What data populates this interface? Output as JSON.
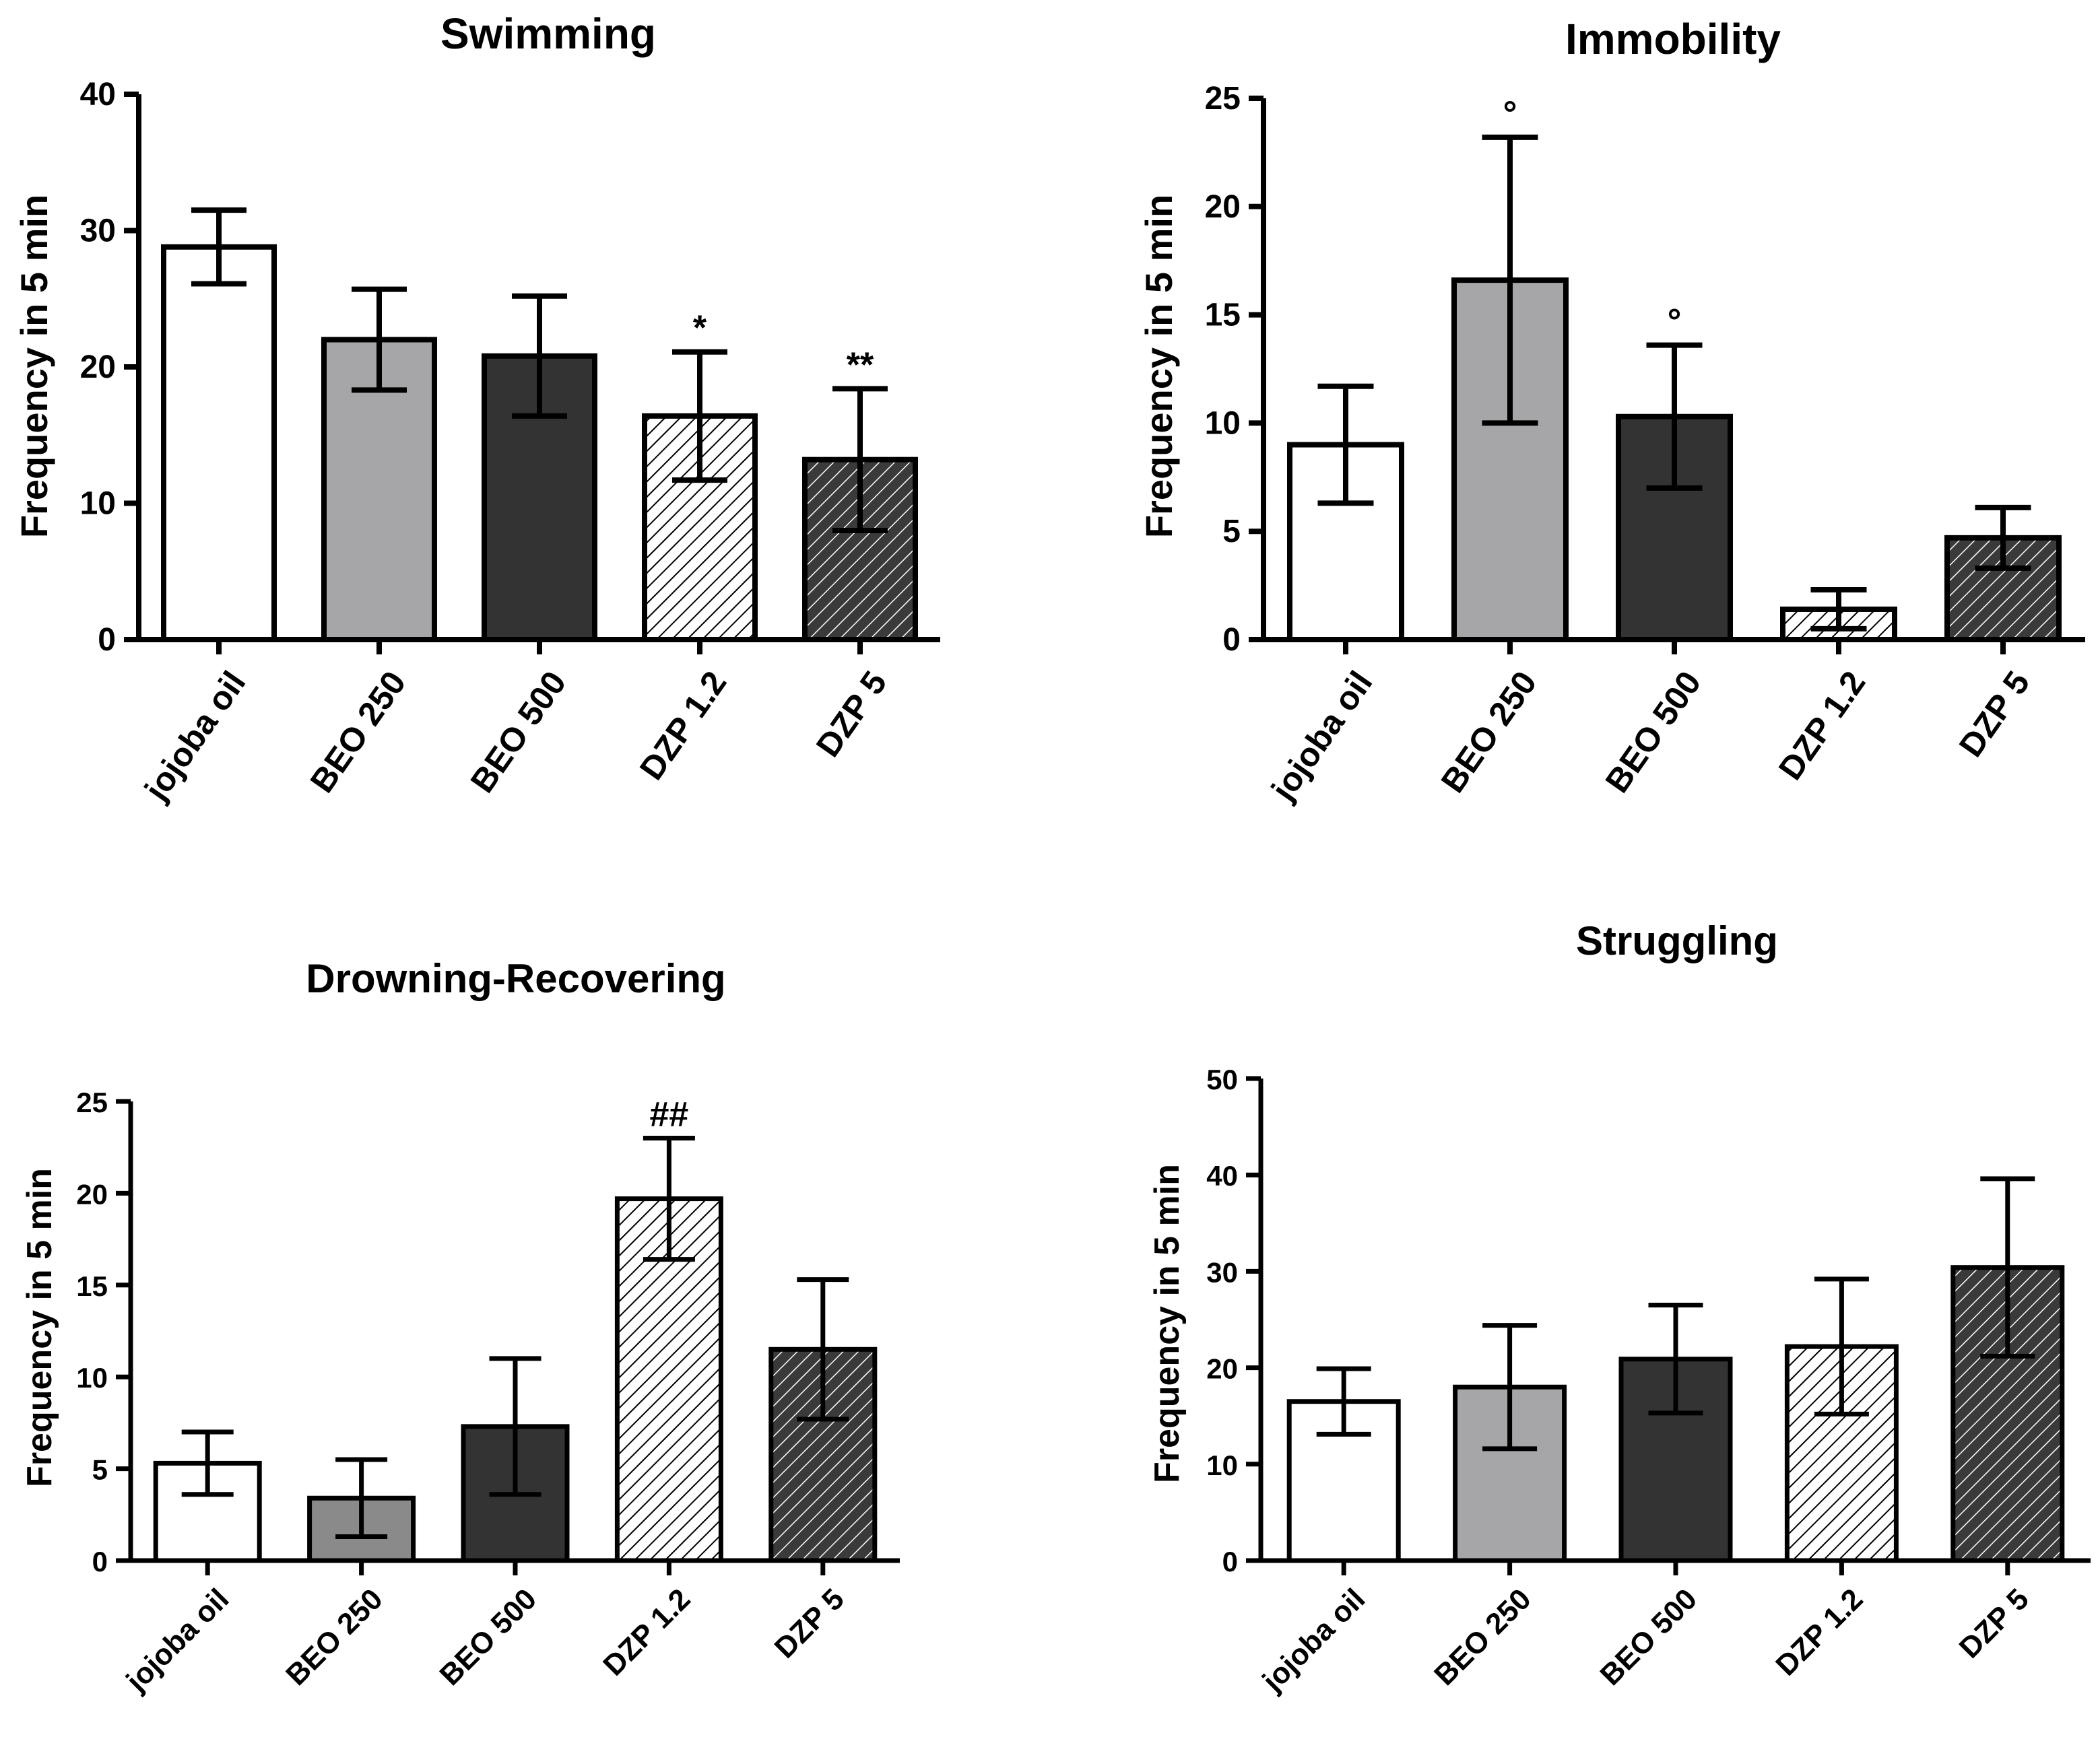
{
  "figure": {
    "colors": {
      "white": "#ffffff",
      "light_gray": "#a6a6a8",
      "mid_gray": "#8a8a8a",
      "dark": "#333333",
      "hatch_light_bg": "#ffffff",
      "hatch_dark_bg": "#3a3a3a",
      "stroke": "#000000"
    }
  },
  "chart_data": [
    {
      "id": "swimming",
      "type": "bar",
      "title": "Swimming",
      "ylabel": "Frequency in 5 min",
      "xlabel": "",
      "categories": [
        "jojoba oil",
        "BEO 250",
        "BEO 500",
        "DZP 1.2",
        "DZP 5"
      ],
      "values": [
        28.8,
        22.0,
        20.8,
        16.4,
        13.2
      ],
      "errors": [
        2.7,
        3.7,
        4.4,
        4.7,
        5.2
      ],
      "annotations": [
        "",
        "",
        "",
        "*",
        "**"
      ],
      "ylim": [
        0,
        40
      ],
      "yticks": [
        0,
        10,
        20,
        30,
        40
      ],
      "fills": [
        "white",
        "light_gray",
        "dark",
        "hatch_light",
        "hatch_dark"
      ]
    },
    {
      "id": "immobility",
      "type": "bar",
      "title": "Immobility",
      "ylabel": "Frequency in 5 min",
      "xlabel": "",
      "categories": [
        "jojoba oil",
        "BEO 250",
        "BEO 500",
        "DZP 1.2",
        "DZP 5"
      ],
      "values": [
        9.0,
        16.6,
        10.3,
        1.4,
        4.7
      ],
      "errors": [
        2.7,
        6.6,
        3.3,
        0.9,
        1.4
      ],
      "annotations": [
        "",
        "°",
        "°",
        "",
        ""
      ],
      "ylim": [
        0,
        25
      ],
      "yticks": [
        0,
        5,
        10,
        15,
        20,
        25
      ],
      "fills": [
        "white",
        "light_gray",
        "dark",
        "hatch_light",
        "hatch_dark"
      ]
    },
    {
      "id": "drowning",
      "type": "bar",
      "title": "Drowning-Recovering",
      "ylabel": "Frequency in 5 min",
      "xlabel": "",
      "categories": [
        "jojoba oil",
        "BEO 250",
        "BEO 500",
        "DZP 1.2",
        "DZP 5"
      ],
      "values": [
        5.3,
        3.4,
        7.3,
        19.7,
        11.5
      ],
      "errors": [
        1.7,
        2.1,
        3.7,
        3.3,
        3.8
      ],
      "annotations": [
        "",
        "",
        "",
        "##",
        ""
      ],
      "ylim": [
        0,
        25
      ],
      "yticks": [
        0,
        5,
        10,
        15,
        20,
        25
      ],
      "fills": [
        "white",
        "mid_gray",
        "dark",
        "hatch_light",
        "hatch_dark"
      ]
    },
    {
      "id": "struggling",
      "type": "bar",
      "title": "Struggling",
      "ylabel": "Frequency in 5 min",
      "xlabel": "",
      "categories": [
        "jojoba oil",
        "BEO 250",
        "BEO 500",
        "DZP 1.2",
        "DZP 5"
      ],
      "values": [
        16.5,
        18.0,
        20.9,
        22.2,
        30.4
      ],
      "errors": [
        3.4,
        6.4,
        5.6,
        7.0,
        9.2
      ],
      "annotations": [
        "",
        "",
        "",
        "",
        ""
      ],
      "ylim": [
        0,
        50
      ],
      "yticks": [
        0,
        10,
        20,
        30,
        40,
        50
      ],
      "fills": [
        "white",
        "light_gray",
        "dark",
        "hatch_light",
        "hatch_dark"
      ]
    }
  ]
}
